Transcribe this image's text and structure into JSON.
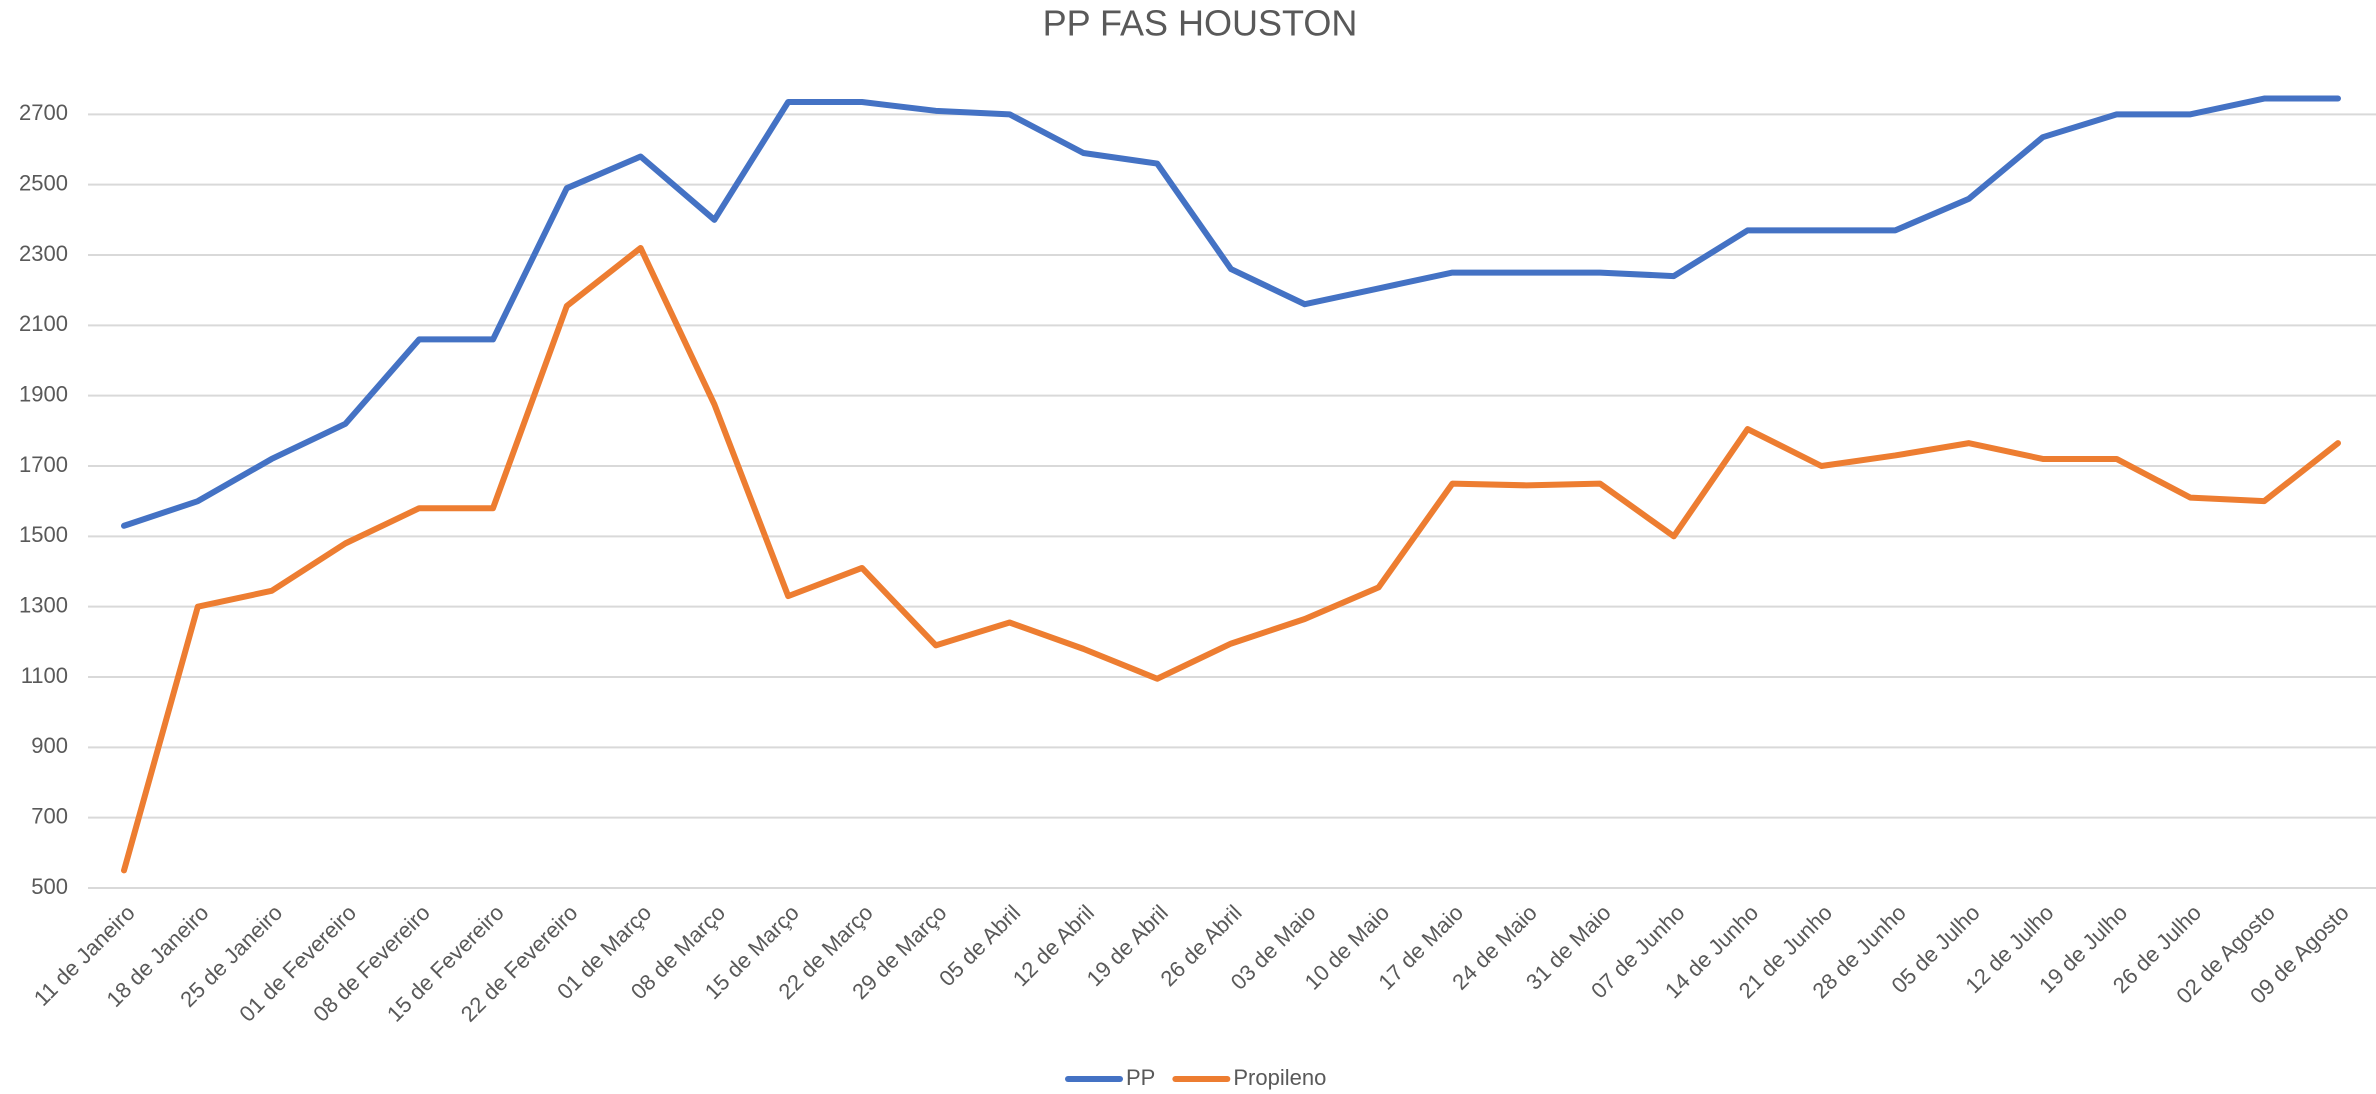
{
  "chart_data": {
    "type": "line",
    "title": "PP FAS HOUSTON",
    "categories": [
      "11 de Janeiro",
      "18 de Janeiro",
      "25 de Janeiro",
      "01 de Fevereiro",
      "08 de Fevereiro",
      "15 de Fevereiro",
      "22 de Fevereiro",
      "01 de Março",
      "08 de Março",
      "15 de Março",
      "22 de Março",
      "29 de Março",
      "05 de Abril",
      "12 de Abril",
      "19 de Abril",
      "26 de Abril",
      "03 de Maio",
      "10 de Maio",
      "17 de Maio",
      "24 de Maio",
      "31 de Maio",
      "07 de Junho",
      "14 de Junho",
      "21 de Junho",
      "28 de Junho",
      "05 de Julho",
      "12 de Julho",
      "19 de Julho",
      "26 de Julho",
      "02 de Agosto",
      "09 de Agosto"
    ],
    "series": [
      {
        "name": "PP",
        "color": "#4472c4",
        "values": [
          1530,
          1600,
          1720,
          1820,
          2060,
          2060,
          2490,
          2580,
          2400,
          2735,
          2735,
          2710,
          2700,
          2590,
          2560,
          2260,
          2160,
          2205,
          2250,
          2250,
          2250,
          2240,
          2370,
          2370,
          2370,
          2460,
          2635,
          2700,
          2700,
          2745,
          2745
        ]
      },
      {
        "name": "Propileno",
        "color": "#ed7d31",
        "values": [
          550,
          1300,
          1345,
          1480,
          1580,
          1580,
          2155,
          2320,
          1875,
          1330,
          1410,
          1190,
          1255,
          1180,
          1095,
          1195,
          1265,
          1355,
          1650,
          1645,
          1650,
          1500,
          1805,
          1700,
          1730,
          1765,
          1720,
          1720,
          1610,
          1600,
          1765
        ]
      }
    ],
    "ylim": [
      500,
      2900
    ],
    "yticks": [
      500,
      700,
      900,
      1100,
      1300,
      1500,
      1700,
      1900,
      2100,
      2300,
      2500,
      2700
    ],
    "grid": true,
    "legend": "bottom"
  }
}
